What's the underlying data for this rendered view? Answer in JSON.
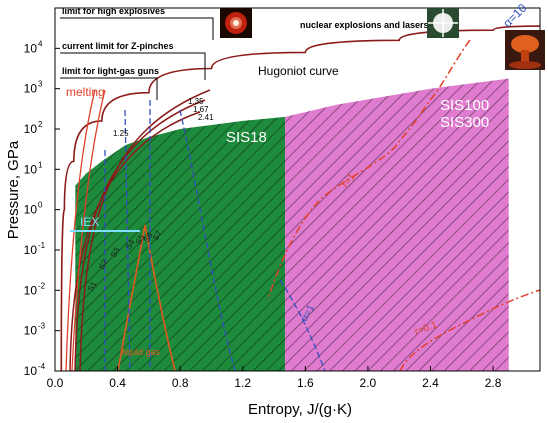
{
  "chart_data": {
    "type": "area",
    "xlabel": "Entropy, J/(g·K)",
    "ylabel": "Pressure, GPa",
    "xlim": [
      0.0,
      3.1
    ],
    "ylim_log10": [
      -4,
      5
    ],
    "x_ticks": [
      "0.0",
      "0.4",
      "0.8",
      "1.2",
      "1.6",
      "2.0",
      "2.4",
      "2.8"
    ],
    "x_tick_values": [
      0.0,
      0.4,
      0.8,
      1.2,
      1.6,
      2.0,
      2.4,
      2.8
    ],
    "y_tick_values": [
      -4,
      -3,
      -2,
      -1,
      0,
      1,
      2,
      3,
      4
    ],
    "y_tick_labels": [
      {
        "base": "10",
        "exp": "-4"
      },
      {
        "base": "10",
        "exp": "-3"
      },
      {
        "base": "10",
        "exp": "-2"
      },
      {
        "base": "10",
        "exp": "-1"
      },
      {
        "base": "10",
        "exp": "0"
      },
      {
        "base": "10",
        "exp": "1"
      },
      {
        "base": "10",
        "exp": "2"
      },
      {
        "base": "10",
        "exp": "3"
      },
      {
        "base": "10",
        "exp": "4"
      }
    ],
    "regions": [
      {
        "name": "SIS18",
        "label": "SIS18",
        "color": "#1e8a3c",
        "x": [
          0.13,
          1.47
        ],
        "upper": [
          [
            0.13,
            0.6
          ],
          [
            0.2,
            0.9
          ],
          [
            0.3,
            1.2
          ],
          [
            0.45,
            1.6
          ],
          [
            0.6,
            1.8
          ],
          [
            0.8,
            2.0
          ],
          [
            1.0,
            2.1
          ],
          [
            1.2,
            2.2
          ],
          [
            1.47,
            2.3
          ]
        ]
      },
      {
        "name": "SIS100/SIS300",
        "label1": "SIS100",
        "label2": "SIS300",
        "color": "#e07ccf",
        "x": [
          1.47,
          2.9
        ],
        "upper": [
          [
            1.47,
            2.3
          ],
          [
            1.8,
            2.6
          ],
          [
            2.1,
            2.8
          ],
          [
            2.4,
            3.0
          ],
          [
            2.7,
            3.15
          ],
          [
            2.9,
            3.25
          ]
        ]
      }
    ],
    "hugoniot": {
      "label": "Hugoniot curve",
      "color": "#8b1a1a",
      "points": [
        [
          0.04,
          -4
        ],
        [
          0.06,
          0.0
        ],
        [
          0.12,
          1.2
        ],
        [
          0.3,
          2.2
        ],
        [
          0.6,
          2.9
        ],
        [
          1.0,
          3.5
        ],
        [
          1.6,
          3.9
        ],
        [
          2.2,
          4.2
        ],
        [
          2.8,
          4.45
        ],
        [
          3.1,
          4.55
        ]
      ]
    },
    "isentropes_labels": [
      "1.35",
      "1.67",
      "2.41",
      "1.25"
    ],
    "melting": {
      "label": "melting",
      "color": "#e0402a"
    },
    "annotations": {
      "explosives": "limit for high explosives",
      "zpinch": "current limit for Z-pinches",
      "lightgas": "limit for light-gas guns",
      "nuclear": "nuclear explosions and lasers",
      "iex": "IEX",
      "alpha10": "α=10",
      "alpha1": "α=1",
      "r1": "r=1",
      "r01": "r=0.1",
      "liquid_gas": "liquid\ngas",
      "s_labels": [
        "S1",
        "S2",
        "S3",
        "S4",
        "S5",
        "S6",
        "S7"
      ]
    }
  }
}
